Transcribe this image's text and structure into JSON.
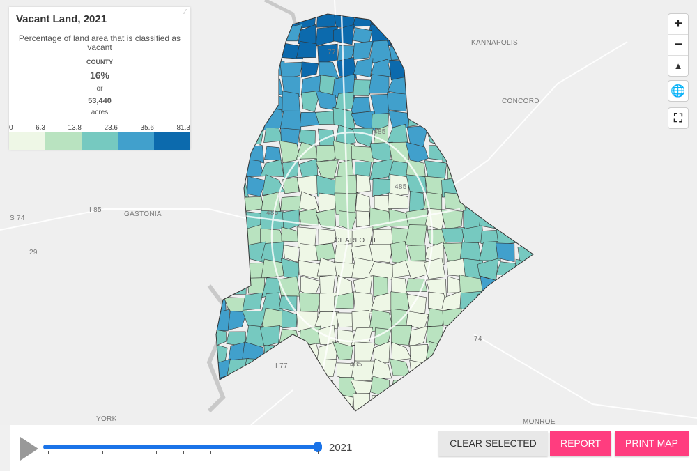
{
  "legend": {
    "title": "Vacant Land, 2021",
    "description": "Percentage of land area that is classified as vacant",
    "county_label": "COUNTY",
    "county_percent": "16%",
    "or": "or",
    "county_acres": "53,440",
    "acres_label": "acres",
    "breaks": [
      "0",
      "6.3",
      "13.8",
      "23.6",
      "35.6",
      "81.3"
    ],
    "colors": [
      "#eef7e6",
      "#b9e3c0",
      "#76c9c0",
      "#41a0cc",
      "#0c6aad"
    ]
  },
  "map": {
    "labels": [
      "KANNAPOLIS",
      "CONCORD",
      "GASTONIA",
      "I 85",
      "S 74",
      "29",
      "CHARLOTTE",
      "485",
      "485",
      "485",
      "485",
      "74",
      "I 77",
      "YORK",
      "MONROE",
      "77"
    ],
    "controls": {
      "zoom_in": "+",
      "zoom_out": "−",
      "north": "▲",
      "globe": "🌐",
      "fullscreen": "⛶"
    }
  },
  "timeline": {
    "year": "2021",
    "progress": 1.0
  },
  "buttons": {
    "clear": "CLEAR SELECTED",
    "report": "REPORT",
    "print": "PRINT MAP"
  }
}
